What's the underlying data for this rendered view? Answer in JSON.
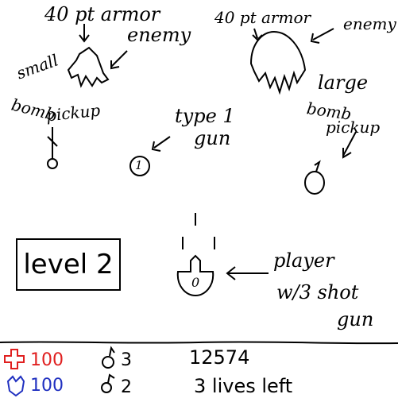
{
  "annotations": {
    "enemy_small_armor": "40 pt armor",
    "enemy_small_name": "enemy",
    "enemy_large_armor": "40 pt armor",
    "enemy_large_name": "enemy",
    "small_bomb_line1": "small",
    "small_bomb_line2": "bomb",
    "small_bomb_line3": "pickup",
    "gun_type_line1": "type 1",
    "gun_type_line2": "gun",
    "large_bomb_line1": "large",
    "large_bomb_line2": "bomb",
    "large_bomb_line3": "pickup",
    "player_line1": "player",
    "player_line2": "w/3 shot",
    "player_line3": "gun",
    "gun_pickup_number": "1"
  },
  "level": {
    "label": "level 2"
  },
  "player_ship": {
    "label": "0"
  },
  "hud": {
    "health": "100",
    "shield": "100",
    "small_bombs": "3",
    "large_bombs": "2",
    "score": "12574",
    "lives": "3 lives left"
  },
  "colors": {
    "health": "#e02020",
    "shield": "#2030c0",
    "ink": "#000000"
  }
}
